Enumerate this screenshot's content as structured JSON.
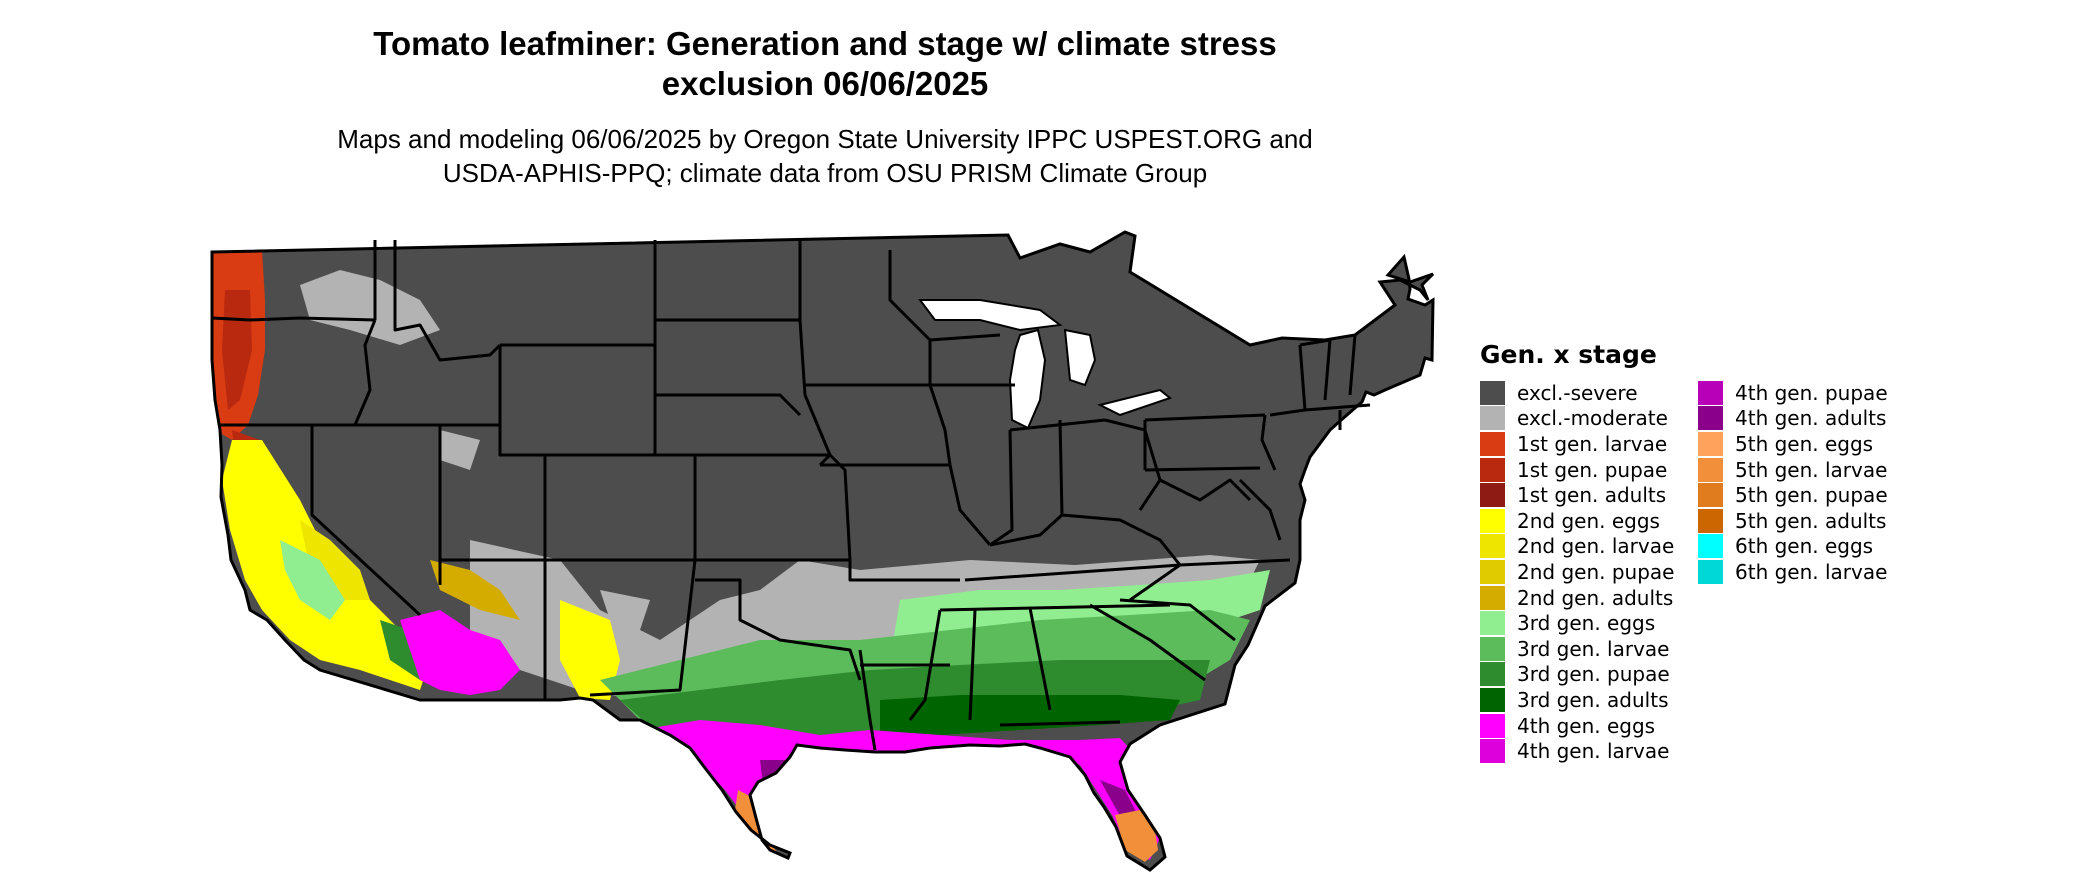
{
  "title_line1": "Tomato leafminer: Generation and stage w/ climate stress",
  "title_line2": "exclusion 06/06/2025",
  "subtitle_line1": "Maps and modeling 06/06/2025 by Oregon State University IPPC USPEST.ORG and",
  "subtitle_line2": "USDA-APHIS-PPQ; climate data from OSU PRISM Climate Group",
  "map": {
    "region": "contiguous-united-states",
    "boundaries": "state-lines",
    "background_color": "#ffffff",
    "boundary_color": "#000000"
  },
  "legend": {
    "title": "Gen. x stage",
    "column1": [
      {
        "label": "excl.-severe",
        "color": "#4d4d4d"
      },
      {
        "label": "excl.-moderate",
        "color": "#b3b3b3"
      },
      {
        "label": "1st gen. larvae",
        "color": "#d93b13"
      },
      {
        "label": "1st gen. pupae",
        "color": "#b8290f"
      },
      {
        "label": "1st gen. adults",
        "color": "#8e1b14"
      },
      {
        "label": "2nd gen. eggs",
        "color": "#ffff00"
      },
      {
        "label": "2nd gen. larvae",
        "color": "#eee600"
      },
      {
        "label": "2nd gen. pupae",
        "color": "#e0ca00"
      },
      {
        "label": "2nd gen. adults",
        "color": "#d4ac00"
      },
      {
        "label": "3rd gen. eggs",
        "color": "#90ee90"
      },
      {
        "label": "3rd gen. larvae",
        "color": "#5cbc5c"
      },
      {
        "label": "3rd gen. pupae",
        "color": "#2e8b2e"
      },
      {
        "label": "3rd gen. adults",
        "color": "#006400"
      },
      {
        "label": "4th gen. eggs",
        "color": "#ff00ff"
      },
      {
        "label": "4th gen. larvae",
        "color": "#dd00dd"
      }
    ],
    "column2": [
      {
        "label": "4th gen. pupae",
        "color": "#b800b8"
      },
      {
        "label": "4th gen. adults",
        "color": "#8b008b"
      },
      {
        "label": "5th gen. eggs",
        "color": "#ffa35c"
      },
      {
        "label": "5th gen. larvae",
        "color": "#f28f3b"
      },
      {
        "label": "5th gen. pupae",
        "color": "#e07b1e"
      },
      {
        "label": "5th gen. adults",
        "color": "#cc6600"
      },
      {
        "label": "6th gen. eggs",
        "color": "#00ffff"
      },
      {
        "label": "6th gen. larvae",
        "color": "#00d8d8"
      }
    ]
  }
}
